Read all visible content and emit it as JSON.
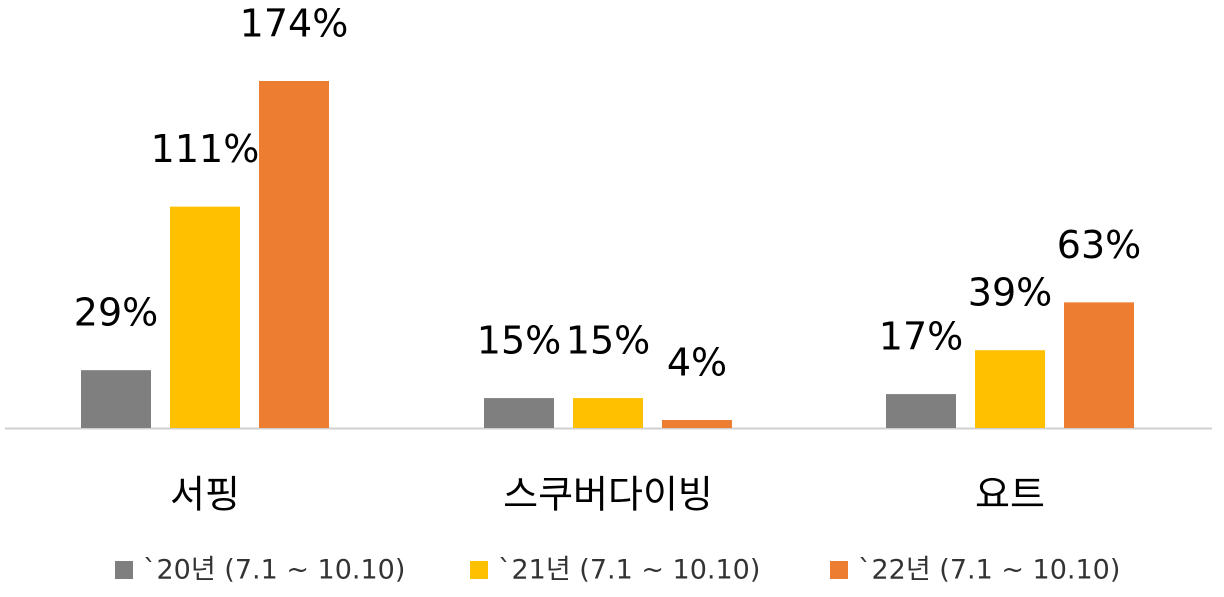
{
  "chart_data": {
    "type": "bar",
    "categories": [
      "서핑",
      "스쿠버다이빙",
      "요트"
    ],
    "series": [
      {
        "name": "`20년 (7.1 ~ 10.10)",
        "color": "#7f7f7f",
        "values": [
          29,
          15,
          17
        ],
        "value_labels": [
          "29%",
          "15%",
          "17%"
        ]
      },
      {
        "name": "`21년 (7.1 ~ 10.10)",
        "color": "#ffc000",
        "values": [
          111,
          15,
          39
        ],
        "value_labels": [
          "111%",
          "15%",
          "39%"
        ]
      },
      {
        "name": "`22년 (7.1 ~ 10.10)",
        "color": "#ed7d31",
        "values": [
          174,
          4,
          63
        ],
        "value_labels": [
          "174%",
          "4%",
          "63%"
        ]
      }
    ]
  }
}
